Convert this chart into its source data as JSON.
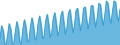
{
  "line_color": "#3d9fd3",
  "fill_color": "#6ab8e0",
  "background_color": "#ffffff",
  "linewidth": 0.7,
  "values": [
    35,
    10,
    45,
    12,
    50,
    15,
    52,
    18,
    55,
    20,
    58,
    22,
    60,
    18,
    62,
    20,
    65,
    16,
    68,
    22,
    70,
    18,
    72,
    20,
    75,
    18,
    72,
    22,
    74,
    20,
    76,
    22,
    78,
    20,
    80,
    18,
    82,
    22,
    80,
    24,
    82,
    20,
    84,
    22,
    86,
    20,
    84,
    24,
    86,
    22,
    88,
    24,
    86,
    22,
    88,
    24,
    90,
    22,
    88,
    26,
    90,
    24,
    88,
    26,
    90,
    24,
    92,
    26,
    90,
    28,
    92,
    26,
    90,
    28,
    92,
    26,
    94,
    28,
    92,
    28
  ],
  "ylim_min": 0,
  "ylim_max": 100
}
